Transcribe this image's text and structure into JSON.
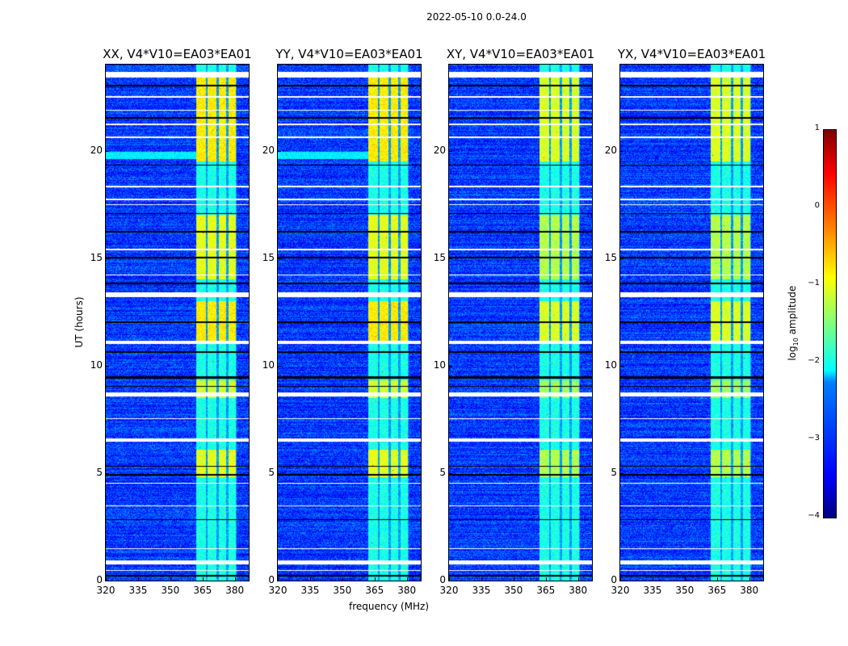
{
  "suptitle": "2022-05-10 0.0-24.0",
  "chart_data": {
    "type": "heatmap",
    "panels": [
      {
        "title": "XX, V4*V10=EA03*EA01",
        "pol": "XX"
      },
      {
        "title": "YY, V4*V10=EA03*EA01",
        "pol": "YY"
      },
      {
        "title": "XY, V4*V10=EA03*EA01",
        "pol": "XY"
      },
      {
        "title": "YX, V4*V10=EA03*EA01",
        "pol": "YX"
      }
    ],
    "xlabel": "frequency (MHz)",
    "ylabel": "UT (hours)",
    "xlim": [
      320,
      386.5
    ],
    "ylim": [
      0,
      24
    ],
    "xticks": [
      320,
      335,
      350,
      365,
      380
    ],
    "yticks": [
      0,
      5,
      10,
      15,
      20
    ],
    "colorbar": {
      "label": "log10 amplitude",
      "label_main": "log",
      "label_sub": "10",
      "label_rest": " amplitude",
      "range": [
        -4,
        1
      ],
      "ticks": [
        1,
        0,
        -1,
        -2,
        -3,
        -4
      ],
      "tick_labels": [
        "1",
        "0",
        "−1",
        "−2",
        "−3",
        "−4"
      ],
      "colormap": "jet"
    },
    "background_level": -3.1,
    "rfi_band_mhz": [
      362,
      381
    ],
    "rfi_stripes_mhz": [
      [
        362,
        366.5
      ],
      [
        367.5,
        371.5
      ],
      [
        372.5,
        376
      ],
      [
        377,
        380.5
      ]
    ],
    "rfi_active_hours": [
      [
        19.5,
        23.5,
        -0.8
      ],
      [
        14.0,
        17.0,
        -1.0
      ],
      [
        11.0,
        13.0,
        -0.8
      ],
      [
        8.5,
        9.3,
        -1.1
      ],
      [
        4.8,
        6.1,
        -1.0
      ]
    ],
    "rfi_quiet_level": -2.0,
    "flagged_hours": [
      [
        23.4,
        23.65
      ],
      [
        22.45,
        22.52
      ],
      [
        21.85,
        21.9
      ],
      [
        21.2,
        21.25
      ],
      [
        20.6,
        20.65
      ],
      [
        18.3,
        18.35
      ],
      [
        17.7,
        17.75
      ],
      [
        17.45,
        17.5
      ],
      [
        15.35,
        15.45
      ],
      [
        14.2,
        14.25
      ],
      [
        13.2,
        13.4
      ],
      [
        11.0,
        11.15
      ],
      [
        8.55,
        8.75
      ],
      [
        7.5,
        7.55
      ],
      [
        6.45,
        6.6
      ],
      [
        4.5,
        4.55
      ],
      [
        3.45,
        3.5
      ],
      [
        1.45,
        1.5
      ],
      [
        0.75,
        0.95
      ],
      [
        0.45,
        0.5
      ]
    ],
    "dead_hours": [
      [
        23.0,
        23.05
      ],
      [
        21.5,
        21.55
      ],
      [
        19.3,
        19.35
      ],
      [
        17.05,
        17.1
      ],
      [
        16.2,
        16.25
      ],
      [
        15.0,
        15.05
      ],
      [
        13.8,
        13.85
      ],
      [
        12.0,
        12.05
      ],
      [
        10.6,
        10.65
      ],
      [
        9.4,
        9.5
      ],
      [
        9.0,
        9.05
      ],
      [
        5.3,
        5.35
      ],
      [
        4.9,
        4.95
      ],
      [
        2.8,
        2.85
      ],
      [
        0.2,
        0.25
      ]
    ],
    "elevated_band": {
      "hours": [
        19.6,
        19.95
      ],
      "level": -2.2,
      "pols": [
        "XX",
        "YY"
      ]
    }
  }
}
